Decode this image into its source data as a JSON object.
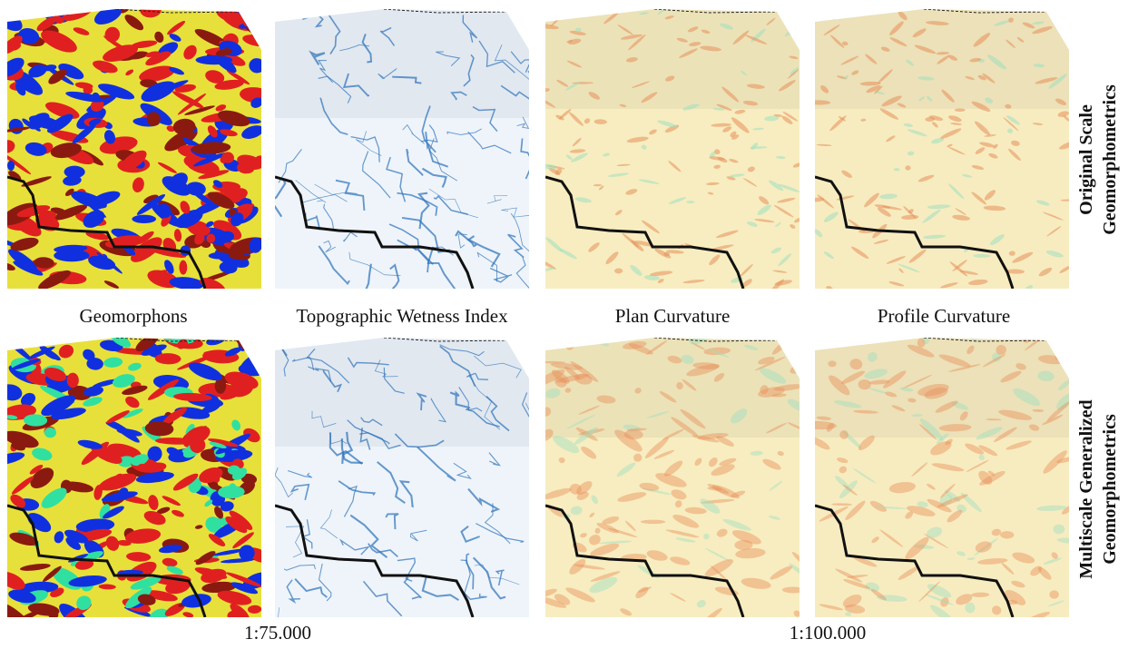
{
  "columns": [
    "Geomorphons",
    "Topographic Wetness Index",
    "Plan Curvature",
    "Profile Curvature"
  ],
  "rows": [
    [
      "Original Scale",
      "Geomorphometrics"
    ],
    [
      "Multiscale Generalized",
      "Geomorphometrics"
    ]
  ],
  "scales": [
    "1:75.000",
    "1:100.000"
  ]
}
